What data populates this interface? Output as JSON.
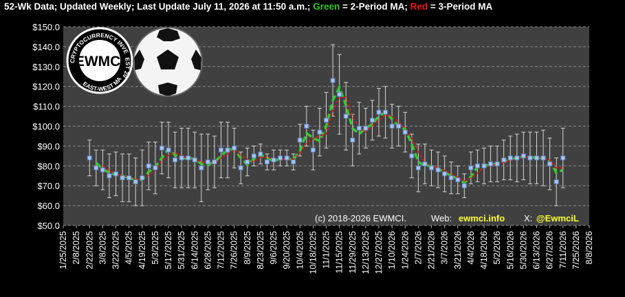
{
  "chart_data": {
    "type": "errorbar_line",
    "title_parts": [
      {
        "text": "52-Wk Data; Updated Weekly; Last Update July 11, 2026 at 11:50 a.m.; ",
        "color": "#ffffff"
      },
      {
        "text": "Green",
        "color": "#22cc22"
      },
      {
        "text": " = 2-Period MA; ",
        "color": "#ffffff"
      },
      {
        "text": "Red",
        "color": "#ee1111"
      },
      {
        "text": " = 3-Period MA",
        "color": "#ffffff"
      }
    ],
    "footer_parts": [
      {
        "text": "(c) 2018-2026 EWMCI.",
        "color": "#ffffff"
      },
      {
        "text": "Web: ",
        "color": "#ffffff"
      },
      {
        "text": "ewmci.info",
        "color": "#ffff33"
      },
      {
        "text": "X: ",
        "color": "#ffffff"
      },
      {
        "text": "@EwmciL",
        "color": "#ffff33"
      }
    ],
    "logo": {
      "center": "EWMCI",
      "ring_top": "CRYPTOCURRENCY INVESTMENTS",
      "ring_right": "EST 2018",
      "ring_bottom": "EAST-WEST MAGNATE"
    },
    "x": [
      "2/22/2025",
      "3/1/2025",
      "3/8/2025",
      "3/15/2025",
      "3/22/2025",
      "3/29/2025",
      "4/5/2025",
      "4/12/2025",
      "4/19/2025",
      "4/26/2025",
      "5/3/2025",
      "5/10/2025",
      "5/17/2025",
      "5/24/2025",
      "5/31/2025",
      "6/7/2025",
      "6/14/2025",
      "6/21/2025",
      "6/28/2025",
      "7/5/2025",
      "7/12/2025",
      "7/19/2025",
      "7/26/2025",
      "8/2/2025",
      "8/9/2025",
      "8/16/2025",
      "8/23/2025",
      "8/30/2025",
      "9/6/2025",
      "9/13/2025",
      "9/20/2025",
      "9/27/2025",
      "10/4/2025",
      "10/11/2025",
      "10/18/2025",
      "10/25/2025",
      "11/1/2025",
      "11/8/2025",
      "11/15/2025",
      "11/22/2025",
      "11/29/2025",
      "12/6/2025",
      "12/13/2025",
      "12/20/2025",
      "12/27/2025",
      "1/3/2026",
      "1/10/2026",
      "1/17/2026",
      "1/24/2026",
      "1/31/2026",
      "2/7/2026",
      "2/14/2026",
      "2/21/2026",
      "2/28/2026",
      "3/7/2026",
      "3/14/2026",
      "3/21/2026",
      "3/28/2026",
      "4/4/2026",
      "4/11/2026",
      "4/18/2026",
      "4/25/2026",
      "5/2/2026",
      "5/9/2026",
      "5/16/2026",
      "5/23/2026",
      "5/30/2026",
      "6/6/2026",
      "6/13/2026",
      "6/20/2026",
      "6/27/2026",
      "7/4/2026",
      "7/11/2026"
    ],
    "values": [
      84,
      79,
      78,
      75,
      76,
      74,
      74,
      72,
      74,
      80,
      79,
      89,
      88,
      83,
      84,
      84,
      83,
      79,
      82,
      82,
      88,
      88,
      89,
      79,
      82,
      85,
      86,
      82,
      83,
      84,
      84,
      82,
      93,
      100,
      88,
      97,
      103,
      123,
      116,
      105,
      93,
      99,
      99,
      103,
      107,
      107,
      100,
      100,
      97,
      85,
      79,
      81,
      79,
      78,
      76,
      74,
      73,
      70,
      79,
      80,
      80,
      81,
      81,
      83,
      84,
      84,
      85,
      84,
      84,
      84,
      81,
      72,
      84
    ],
    "errors": [
      9,
      9,
      10,
      11,
      11,
      12,
      12,
      12,
      14,
      12,
      13,
      13,
      14,
      14,
      15,
      15,
      14,
      17,
      14,
      13,
      14,
      14,
      10,
      8,
      7,
      5,
      5,
      4,
      5,
      4,
      4,
      4,
      8,
      10,
      10,
      12,
      14,
      18,
      20,
      17,
      13,
      13,
      10,
      10,
      12,
      13,
      11,
      10,
      10,
      11,
      12,
      10,
      9,
      9,
      9,
      8,
      7,
      6,
      8,
      8,
      9,
      9,
      9,
      10,
      11,
      12,
      12,
      13,
      13,
      14,
      13,
      12,
      15
    ],
    "marker_color": "#a8c4ec",
    "errorbar_color": "#d8d8d8",
    "series": [
      {
        "color": "#33cc33",
        "values": [
          null,
          81.5,
          78.5,
          76.5,
          75.5,
          75,
          74,
          73,
          73,
          77,
          79.5,
          84,
          88.5,
          85.5,
          83.5,
          84,
          83.5,
          81,
          80.5,
          82,
          85,
          88,
          88.5,
          84,
          80.5,
          83.5,
          85.5,
          84,
          82.5,
          83.5,
          84,
          83,
          87.5,
          96.5,
          94,
          92.5,
          100,
          113,
          119.5,
          110.5,
          99,
          96,
          99,
          101,
          105,
          107,
          103.5,
          100,
          98.5,
          91,
          82,
          80,
          80,
          78.5,
          77,
          75,
          73.5,
          71.5,
          74.5,
          79.5,
          80,
          80.5,
          81,
          82,
          83.5,
          84,
          84.5,
          84.5,
          84,
          84,
          82.5,
          76.5,
          78
        ]
      },
      {
        "color": "#ee1111",
        "values": [
          null,
          null,
          80.3,
          77.3,
          76.3,
          75,
          74.7,
          73.3,
          73.3,
          75.3,
          77.7,
          82.7,
          85.3,
          86.7,
          85,
          83.7,
          83.7,
          82,
          81.3,
          81,
          84,
          86,
          88.3,
          85.3,
          83.3,
          82,
          84.3,
          84.3,
          83.7,
          83,
          83.7,
          83.3,
          86.3,
          91.7,
          93.7,
          95,
          96,
          107.7,
          114,
          114.7,
          104.7,
          99,
          97,
          100.3,
          103,
          105.7,
          104.7,
          102.3,
          99,
          94,
          87,
          81.7,
          79.7,
          79.3,
          77.7,
          76,
          74.3,
          72.3,
          74,
          76.3,
          79.7,
          80.3,
          80.7,
          81.7,
          82.7,
          83.7,
          84.3,
          84.3,
          84.3,
          84,
          83,
          79,
          79
        ]
      }
    ],
    "xlim": [
      "1/25/2025",
      "8/8/2026"
    ],
    "xticks": [
      "1/25/2025",
      "2/8/2025",
      "2/22/2025",
      "3/8/2025",
      "3/22/2025",
      "4/5/2025",
      "4/19/2025",
      "5/3/2025",
      "5/17/2025",
      "5/31/2025",
      "6/14/2025",
      "6/28/2025",
      "7/12/2025",
      "7/26/2025",
      "8/9/2025",
      "8/23/2025",
      "9/6/2025",
      "9/20/2025",
      "10/4/2025",
      "10/18/2025",
      "11/1/2025",
      "11/15/2025",
      "11/29/2025",
      "12/13/2025",
      "12/27/2025",
      "1/10/2026",
      "1/24/2026",
      "2/7/2026",
      "2/21/2026",
      "3/7/2026",
      "3/21/2026",
      "4/4/2026",
      "4/18/2026",
      "5/2/2026",
      "5/16/2026",
      "5/30/2026",
      "6/13/2026",
      "6/27/2026",
      "7/11/2026",
      "7/25/2026",
      "8/8/2026"
    ],
    "ylim": [
      50,
      150
    ],
    "yticks": [
      {
        "value": 50,
        "label": "$50.0"
      },
      {
        "value": 60,
        "label": "$60.0"
      },
      {
        "value": 70,
        "label": "$70.0"
      },
      {
        "value": 80,
        "label": "$80.0"
      },
      {
        "value": 90,
        "label": "$90.0"
      },
      {
        "value": 100,
        "label": "$100.0"
      },
      {
        "value": 110,
        "label": "$110.0"
      },
      {
        "value": 120,
        "label": "$120.0"
      },
      {
        "value": 130,
        "label": "$130.0"
      },
      {
        "value": 140,
        "label": "$140.0"
      },
      {
        "value": 150,
        "label": "$150.0"
      }
    ],
    "grid": true,
    "plot_background": "#404040",
    "background": "#000000"
  }
}
